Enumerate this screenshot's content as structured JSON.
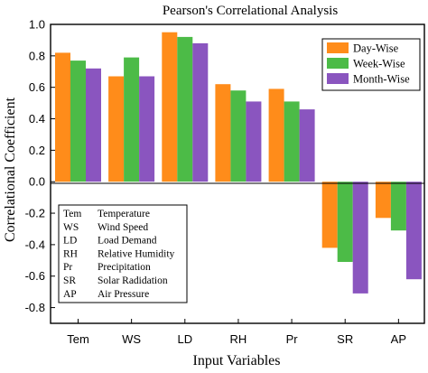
{
  "chart_data": {
    "type": "bar",
    "title": "Pearson's Correlational Analysis",
    "xlabel": "Input Variables",
    "ylabel": "Correlational Coefficient",
    "ylim": [
      -0.9,
      1.0
    ],
    "yticks": [
      "-0.8",
      "-0.6",
      "-0.4",
      "-0.2",
      "0.0",
      "0.2",
      "0.4",
      "0.6",
      "0.8",
      "1.0"
    ],
    "categories": [
      "Tem",
      "WS",
      "LD",
      "RH",
      "Pr",
      "SR",
      "AP"
    ],
    "series": [
      {
        "name": "Day-Wise",
        "color": "#ff8c1a",
        "values": [
          0.82,
          0.67,
          0.95,
          0.62,
          0.59,
          -0.42,
          -0.23
        ]
      },
      {
        "name": "Week-Wise",
        "color": "#4cbb47",
        "values": [
          0.77,
          0.79,
          0.92,
          0.58,
          0.51,
          -0.51,
          -0.31
        ]
      },
      {
        "name": "Month-Wise",
        "color": "#8a55bf",
        "values": [
          0.72,
          0.67,
          0.88,
          0.51,
          0.46,
          -0.71,
          -0.62
        ]
      }
    ],
    "legend_position": "top-right",
    "grid": false,
    "abbreviations": [
      {
        "abbr": "Tem",
        "full": "Temperature"
      },
      {
        "abbr": "WS",
        "full": "Wind Speed"
      },
      {
        "abbr": "LD",
        "full": "Load Demand"
      },
      {
        "abbr": "RH",
        "full": "Relative Humidity"
      },
      {
        "abbr": "Pr",
        "full": "Precipitation"
      },
      {
        "abbr": "SR",
        "full": "Solar Radidation"
      },
      {
        "abbr": "AP",
        "full": "Air Pressure"
      }
    ]
  }
}
